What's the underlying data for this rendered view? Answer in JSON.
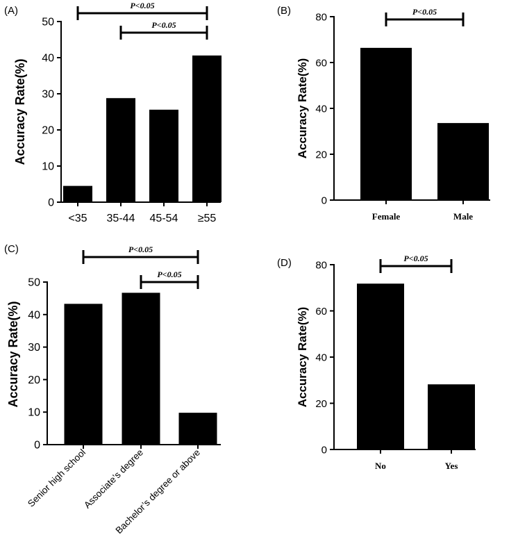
{
  "chart_data": [
    {
      "type": "bar",
      "panel_label": "(A)",
      "ylabel": "Accuracy Rate(%)",
      "categories": [
        "<35",
        "35-44",
        "45-54",
        "≥55"
      ],
      "values": [
        4.5,
        28.8,
        25.6,
        40.6
      ],
      "ylim": [
        0,
        50
      ],
      "yticks": [
        "0",
        "10",
        "20",
        "30",
        "40",
        "50"
      ],
      "significance": [
        {
          "from": 0,
          "to": 3,
          "label": "P<0.05"
        },
        {
          "from": 1,
          "to": 3,
          "label": "P<0.05"
        }
      ]
    },
    {
      "type": "bar",
      "panel_label": "(B)",
      "ylabel": "Accuracy Rate(%)",
      "categories": [
        "Female",
        "Male"
      ],
      "values": [
        66.4,
        33.6
      ],
      "ylim": [
        0,
        80
      ],
      "yticks": [
        "0",
        "20",
        "40",
        "60",
        "80"
      ],
      "significance": [
        {
          "from": 0,
          "to": 1,
          "label": "P<0.05"
        }
      ]
    },
    {
      "type": "bar",
      "panel_label": "(C)",
      "ylabel": "Accuracy Rate(%)",
      "categories": [
        "Senior high school",
        "Associate’s degree",
        "Bachelor’s degree or above"
      ],
      "values": [
        43.3,
        46.7,
        9.8
      ],
      "ylim": [
        0,
        50
      ],
      "yticks": [
        "0",
        "10",
        "20",
        "30",
        "40",
        "50"
      ],
      "significance": [
        {
          "from": 0,
          "to": 2,
          "label": "P<0.05"
        },
        {
          "from": 1,
          "to": 2,
          "label": "P<0.05"
        }
      ]
    },
    {
      "type": "bar",
      "panel_label": "(D)",
      "ylabel": "Accuracy Rate(%)",
      "categories": [
        "No",
        "Yes"
      ],
      "values": [
        71.8,
        28.2
      ],
      "ylim": [
        0,
        80
      ],
      "yticks": [
        "0",
        "20",
        "40",
        "60",
        "80"
      ],
      "significance": [
        {
          "from": 0,
          "to": 1,
          "label": "P<0.05"
        }
      ]
    }
  ]
}
